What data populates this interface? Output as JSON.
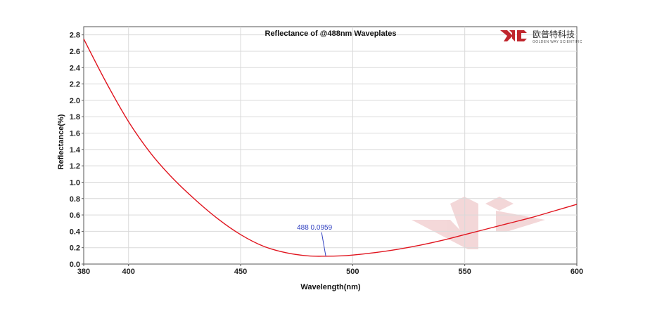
{
  "brand": {
    "name_cn": "欧普特科技",
    "name_en": "GOLDEN WAY SCIENTIFIC",
    "color": "#c0262d"
  },
  "chart_data": {
    "type": "line",
    "title": "Reflectance of @488nm  Waveplates",
    "xlabel": "Wavelength(nm)",
    "ylabel": "Reflectance(%)",
    "xlim": [
      380,
      600
    ],
    "ylim": [
      0,
      2.9
    ],
    "xticks": [
      380,
      400,
      450,
      500,
      550,
      600
    ],
    "yticks": [
      0.0,
      0.2,
      0.4,
      0.6,
      0.8,
      1.0,
      1.2,
      1.4,
      1.6,
      1.8,
      2.0,
      2.2,
      2.4,
      2.6,
      2.8
    ],
    "grid": true,
    "line_color": "#e0141e",
    "series": [
      {
        "x": [
          380,
          390,
          400,
          410,
          420,
          430,
          440,
          450,
          460,
          470,
          480,
          488,
          495,
          500,
          510,
          520,
          530,
          540,
          550,
          560,
          570,
          580,
          590,
          600
        ],
        "y": [
          2.75,
          2.22,
          1.74,
          1.35,
          1.04,
          0.78,
          0.55,
          0.36,
          0.22,
          0.14,
          0.1,
          0.0959,
          0.1,
          0.11,
          0.14,
          0.18,
          0.23,
          0.29,
          0.36,
          0.43,
          0.5,
          0.57,
          0.65,
          0.73
        ]
      }
    ],
    "annotation": {
      "x": 488,
      "y": 0.0959,
      "label": "488 0.0959"
    }
  }
}
